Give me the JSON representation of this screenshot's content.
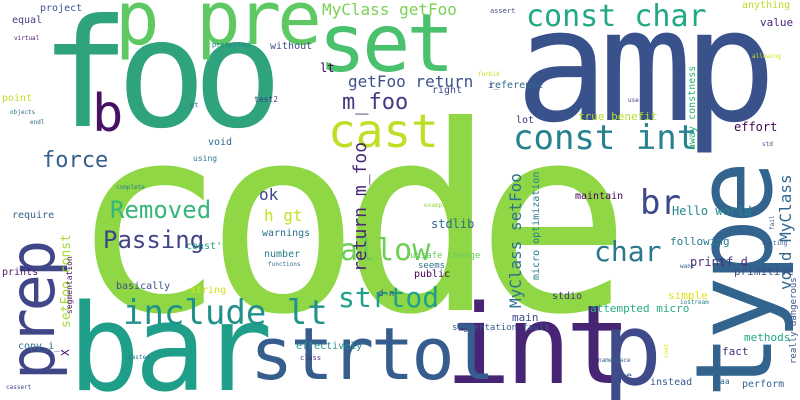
{
  "words": [
    {
      "text": "code",
      "color": "#8fd744"
    },
    {
      "text": "foo",
      "color": "#2ea37d"
    },
    {
      "text": "amp",
      "color": "#3a528b"
    },
    {
      "text": "int",
      "color": "#482475"
    },
    {
      "text": "bar",
      "color": "#1f9e89"
    },
    {
      "text": "type",
      "color": "#32648e"
    },
    {
      "text": "p pre",
      "color": "#5ec962"
    },
    {
      "text": "set",
      "color": "#4ac16d"
    },
    {
      "text": "prep",
      "color": "#404688"
    },
    {
      "text": "p",
      "color": "#3e4a89"
    },
    {
      "text": "strtol",
      "color": "#365d8d"
    },
    {
      "text": "cast",
      "color": "#bddf26"
    },
    {
      "text": "b",
      "color": "#471164"
    },
    {
      "text": "const char",
      "color": "#22a884"
    },
    {
      "text": "const int",
      "color": "#26828e"
    },
    {
      "text": "include lt",
      "color": "#21918c"
    },
    {
      "text": "Passing",
      "color": "#414487"
    },
    {
      "text": "Removed",
      "color": "#35b779"
    },
    {
      "text": "allow",
      "color": "#6ece58"
    },
    {
      "text": "strtod",
      "color": "#1fa088"
    },
    {
      "text": "force",
      "color": "#355f8d"
    },
    {
      "text": "br",
      "color": "#3e4989"
    },
    {
      "text": "char",
      "color": "#2a788e"
    },
    {
      "text": "m_foo",
      "color": "#443983"
    },
    {
      "text": "MyClass getFoo",
      "color": "#7ad151"
    },
    {
      "text": "getFoo return",
      "color": "#3b528b"
    },
    {
      "text": "return m_foo",
      "color": "#482878"
    },
    {
      "text": "void MyClass",
      "color": "#31688e"
    },
    {
      "text": "MyClass setFoo",
      "color": "#2c728e"
    },
    {
      "text": "setFoo const",
      "color": "#a5db36"
    },
    {
      "text": "h gt",
      "color": "#c8e020"
    },
    {
      "text": "ok",
      "color": "#3f4788"
    },
    {
      "text": "Hello world",
      "color": "#25858e"
    },
    {
      "text": "printf d",
      "color": "#472d7b"
    },
    {
      "text": "stdlib",
      "color": "#2f6b8e"
    },
    {
      "text": "lt",
      "color": "#440154"
    },
    {
      "text": "micro optimization",
      "color": "#277f8e"
    },
    {
      "text": "effort",
      "color": "#440154"
    },
    {
      "text": "primitive",
      "color": "#3d4d8a"
    },
    {
      "text": "main",
      "color": "#3f4889"
    },
    {
      "text": "reference",
      "color": "#31678e"
    },
    {
      "text": "attempted micro",
      "color": "#27ad81"
    },
    {
      "text": "true benefit",
      "color": "#b5de2b"
    },
    {
      "text": "away constness",
      "color": "#29af7f"
    },
    {
      "text": "unsafe change",
      "color": "#65cb5e"
    },
    {
      "text": "maintain",
      "color": "#440154"
    },
    {
      "text": "following",
      "color": "#287d8e"
    },
    {
      "text": "segmentation fault",
      "color": "#355e8d"
    },
    {
      "text": "simple",
      "color": "#e2e418"
    },
    {
      "text": "methods",
      "color": "#20a386"
    },
    {
      "text": "fact",
      "color": "#46327e"
    },
    {
      "text": "really dangerous",
      "color": "#3b528b"
    },
    {
      "text": "basically",
      "color": "#3d4e8a"
    },
    {
      "text": "warnings",
      "color": "#2c718e"
    },
    {
      "text": "number",
      "color": "#277e8e"
    },
    {
      "text": "require",
      "color": "#33628d"
    },
    {
      "text": "prints",
      "color": "#481b6d"
    },
    {
      "text": "public",
      "color": "#440154"
    },
    {
      "text": "seems",
      "color": "#2b758e"
    },
    {
      "text": "right",
      "color": "#404588"
    },
    {
      "text": "lot",
      "color": "#46307e"
    },
    {
      "text": "value",
      "color": "#482374"
    },
    {
      "text": "anything",
      "color": "#b8de29"
    },
    {
      "text": "without",
      "color": "#3c4f8a"
    },
    {
      "text": "equal",
      "color": "#433e85"
    },
    {
      "text": "project",
      "color": "#3b528b"
    },
    {
      "text": "point",
      "color": "#c0df25"
    },
    {
      "text": "void",
      "color": "#31688e"
    },
    {
      "text": "const'",
      "color": "#1e9c89"
    },
    {
      "text": "copy_i_",
      "color": "#2c728e"
    },
    {
      "text": "effectively",
      "color": "#21918c"
    },
    {
      "text": "stdio",
      "color": "#46327e"
    },
    {
      "text": "instead",
      "color": "#365c8d"
    },
    {
      "text": "perform",
      "color": "#33638d"
    },
    {
      "text": "see",
      "color": "#3b518b"
    },
    {
      "text": "string",
      "color": "#d8e219"
    },
    {
      "text": "X",
      "color": "#460b5e"
    },
    {
      "text": "segmentation",
      "color": "#481668"
    },
    {
      "text": "test2",
      "color": "#424086"
    },
    {
      "text": "gt",
      "color": "#2d708e"
    },
    {
      "text": "using",
      "color": "#29798e"
    },
    {
      "text": "d n",
      "color": "#3f4788"
    },
    {
      "text": "i_",
      "color": "#3e4a89"
    },
    {
      "text": "aa",
      "color": "#31688e"
    },
    {
      "text": "assert",
      "color": "#3e4c8a"
    },
    {
      "text": "protected",
      "color": "#24868e"
    },
    {
      "text": "virtual",
      "color": "#481467"
    },
    {
      "text": "objects",
      "color": "#2c728e"
    },
    {
      "text": "allowing",
      "color": "#d0e11c"
    },
    {
      "text": "endl",
      "color": "#31688e"
    },
    {
      "text": "std",
      "color": "#39558c"
    },
    {
      "text": "use",
      "color": "#424186"
    },
    {
      "text": "forbid",
      "color": "#c2df23"
    },
    {
      "text": "complete",
      "color": "#26828e"
    },
    {
      "text": "example",
      "color": "#95d840"
    },
    {
      "text": "casting",
      "color": "#39568c"
    },
    {
      "text": "fail",
      "color": "#3a538b"
    },
    {
      "text": "want",
      "color": "#355f8d"
    },
    {
      "text": "iostream",
      "color": "#25848e"
    },
    {
      "text": "functions",
      "color": "#2e6f8e"
    },
    {
      "text": "namespace",
      "color": "#34608d"
    },
    {
      "text": "class",
      "color": "#46327e"
    },
    {
      "text": "casted",
      "color": "#2e6e8e"
    },
    {
      "text": "cassert",
      "color": "#3f4788"
    },
    {
      "text": "cout",
      "color": "#e5e419"
    }
  ]
}
